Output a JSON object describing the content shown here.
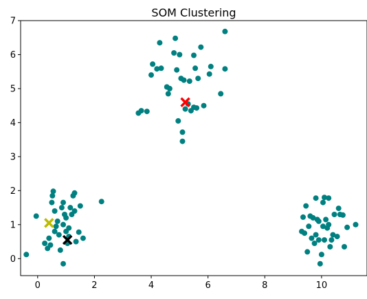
{
  "chart_data": {
    "type": "scatter",
    "title": "SOM Clustering",
    "xlabel": "",
    "ylabel": "",
    "xlim": [
      -0.6,
      11.6
    ],
    "ylim": [
      -0.5,
      7.0
    ],
    "xticks": [
      0,
      2,
      4,
      6,
      8,
      10
    ],
    "yticks": [
      0,
      1,
      2,
      3,
      4,
      5,
      6,
      7
    ],
    "grid": false,
    "colors": {
      "points": "#008080",
      "markers": [
        "#ff0000",
        "#bbbb00",
        "#000000"
      ]
    },
    "series": [
      {
        "marker": "circle",
        "points": [
          [
            -0.4,
            0.12
          ],
          [
            -0.05,
            1.25
          ],
          [
            0.25,
            0.45
          ],
          [
            0.35,
            0.3
          ],
          [
            0.4,
            0.6
          ],
          [
            0.45,
            0.4
          ],
          [
            0.5,
            1.65
          ],
          [
            0.52,
            1.85
          ],
          [
            0.55,
            1.98
          ],
          [
            0.6,
            0.8
          ],
          [
            0.6,
            1.4
          ],
          [
            0.65,
            0.95
          ],
          [
            0.7,
            1.1
          ],
          [
            0.75,
            0.7
          ],
          [
            0.8,
            0.25
          ],
          [
            0.85,
            1.5
          ],
          [
            0.9,
            1.65
          ],
          [
            0.9,
            1.0
          ],
          [
            0.9,
            -0.15
          ],
          [
            0.95,
            1.3
          ],
          [
            1.0,
            0.8
          ],
          [
            1.0,
            1.2
          ],
          [
            1.05,
            0.45
          ],
          [
            1.1,
            0.65
          ],
          [
            1.1,
            0.9
          ],
          [
            1.15,
            1.5
          ],
          [
            1.2,
            1.3
          ],
          [
            1.25,
            1.85
          ],
          [
            1.3,
            1.93
          ],
          [
            1.3,
            1.4
          ],
          [
            1.35,
            0.5
          ],
          [
            1.45,
            0.78
          ],
          [
            1.5,
            1.55
          ],
          [
            1.6,
            0.6
          ],
          [
            2.25,
            1.68
          ],
          [
            3.55,
            4.28
          ],
          [
            3.65,
            4.35
          ],
          [
            3.85,
            4.33
          ],
          [
            4.0,
            5.4
          ],
          [
            4.05,
            5.72
          ],
          [
            4.2,
            5.58
          ],
          [
            4.3,
            6.35
          ],
          [
            4.35,
            5.6
          ],
          [
            4.55,
            5.05
          ],
          [
            4.6,
            4.85
          ],
          [
            4.65,
            5.0
          ],
          [
            4.8,
            6.05
          ],
          [
            4.85,
            6.48
          ],
          [
            4.9,
            5.55
          ],
          [
            4.95,
            4.05
          ],
          [
            5.0,
            6.0
          ],
          [
            5.05,
            5.3
          ],
          [
            5.1,
            3.72
          ],
          [
            5.1,
            3.45
          ],
          [
            5.15,
            5.25
          ],
          [
            5.2,
            4.4
          ],
          [
            5.3,
            4.55
          ],
          [
            5.35,
            5.22
          ],
          [
            5.4,
            4.35
          ],
          [
            5.5,
            4.45
          ],
          [
            5.5,
            5.98
          ],
          [
            5.55,
            5.6
          ],
          [
            5.6,
            4.43
          ],
          [
            5.65,
            5.3
          ],
          [
            5.75,
            6.22
          ],
          [
            5.85,
            4.5
          ],
          [
            6.05,
            5.43
          ],
          [
            6.1,
            5.65
          ],
          [
            6.45,
            4.85
          ],
          [
            6.6,
            6.68
          ],
          [
            6.6,
            5.58
          ],
          [
            9.3,
            0.8
          ],
          [
            9.35,
            1.22
          ],
          [
            9.4,
            0.75
          ],
          [
            9.45,
            1.55
          ],
          [
            9.5,
            0.2
          ],
          [
            9.55,
            0.95
          ],
          [
            9.6,
            1.25
          ],
          [
            9.65,
            0.6
          ],
          [
            9.7,
            1.2
          ],
          [
            9.75,
            0.45
          ],
          [
            9.8,
            1.78
          ],
          [
            9.8,
            0.7
          ],
          [
            9.85,
            1.15
          ],
          [
            9.9,
            0.55
          ],
          [
            9.9,
            1.1
          ],
          [
            9.95,
            -0.15
          ],
          [
            10.0,
            0.12
          ],
          [
            10.05,
            0.95
          ],
          [
            10.05,
            1.65
          ],
          [
            10.1,
            1.8
          ],
          [
            10.1,
            0.55
          ],
          [
            10.15,
            1.15
          ],
          [
            10.2,
            0.9
          ],
          [
            10.25,
            1.0
          ],
          [
            10.25,
            1.78
          ],
          [
            10.3,
            0.35
          ],
          [
            10.35,
            0.55
          ],
          [
            10.4,
            0.7
          ],
          [
            10.45,
            1.3
          ],
          [
            10.55,
            0.65
          ],
          [
            10.6,
            1.48
          ],
          [
            10.65,
            1.3
          ],
          [
            10.75,
            1.28
          ],
          [
            10.8,
            0.35
          ],
          [
            10.9,
            0.92
          ],
          [
            11.2,
            1.0
          ]
        ]
      },
      {
        "marker": "x",
        "points": [
          [
            5.2,
            4.6
          ],
          [
            0.4,
            1.05
          ],
          [
            1.05,
            0.55
          ]
        ]
      }
    ]
  }
}
